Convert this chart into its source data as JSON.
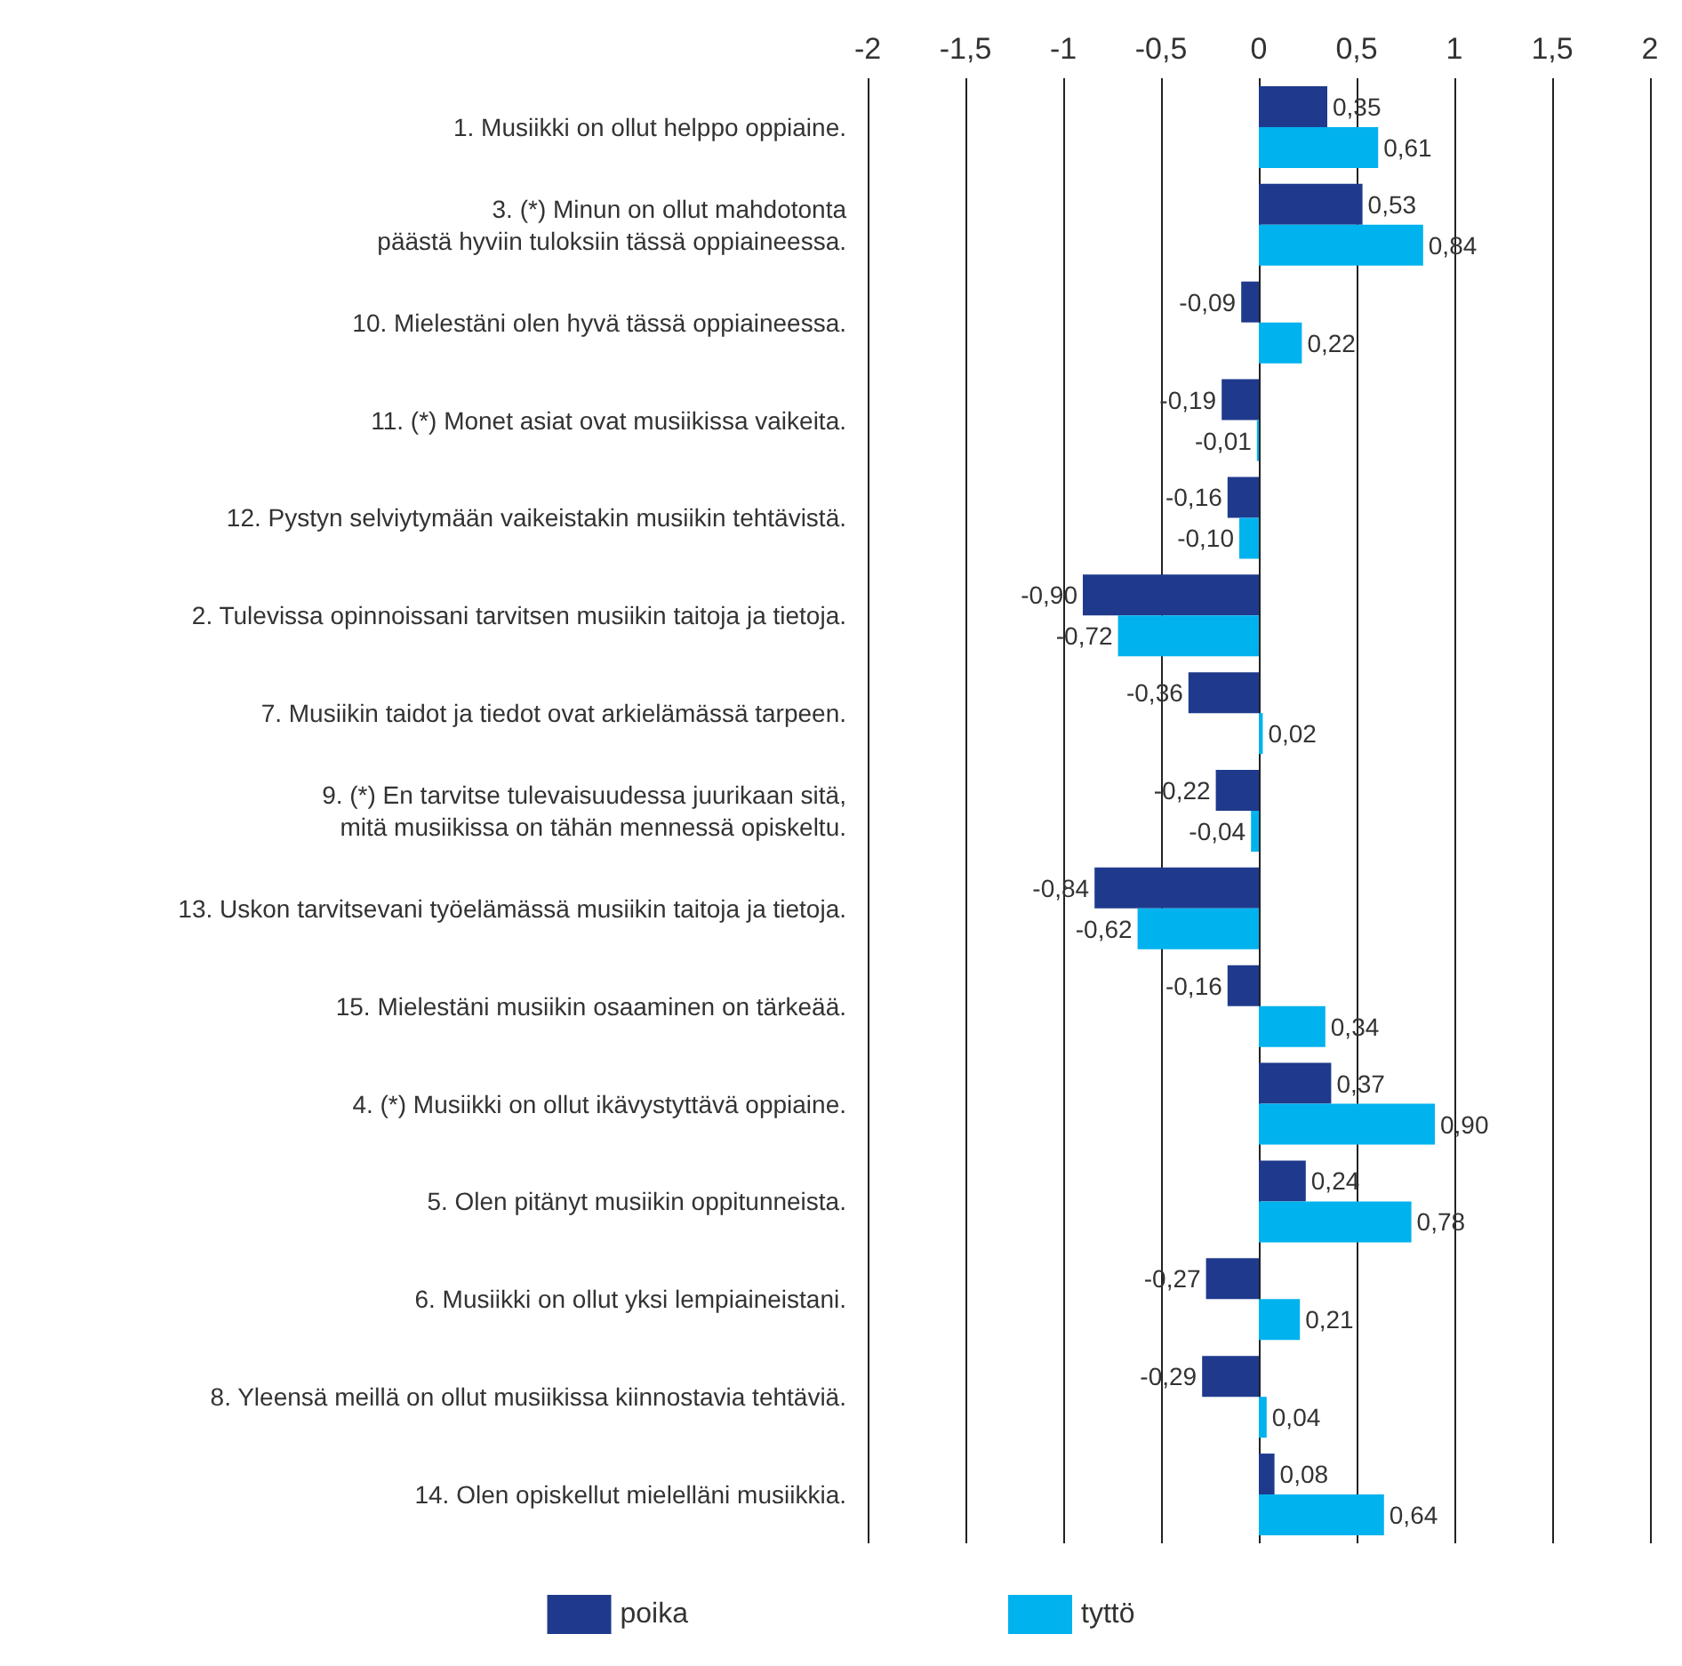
{
  "chart_data": {
    "type": "bar",
    "orientation": "horizontal",
    "categories": [
      "1. Musiikki on ollut helppo oppiaine.",
      "3. (*) Minun on ollut mahdotonta\npäästä hyviin tuloksiin tässä oppiaineessa.",
      "10. Mielestäni olen hyvä tässä oppiaineessa.",
      "11. (*) Monet asiat ovat musiikissa vaikeita.",
      "12. Pystyn selviytymään vaikeistakin musiikin tehtävistä.",
      "2. Tulevissa opinnoissani tarvitsen musiikin taitoja ja tietoja.",
      "7. Musiikin taidot ja tiedot ovat arkielämässä tarpeen.",
      "9. (*) En tarvitse tulevaisuudessa juurikaan sitä,\nmitä musiikissa on tähän mennessä opiskeltu.",
      "13. Uskon tarvitsevani työelämässä musiikin taitoja ja tietoja.",
      "15. Mielestäni musiikin osaaminen on tärkeää.",
      "4. (*) Musiikki on ollut ikävystyttävä oppiaine.",
      "5. Olen pitänyt musiikin oppitunneista.",
      "6. Musiikki on ollut yksi lempiaineistani.",
      "8. Yleensä meillä on ollut musiikissa kiinnostavia tehtäviä.",
      "14. Olen opiskellut mielelläni musiikkia."
    ],
    "series": [
      {
        "name": "poika",
        "color": "#1f3a8c",
        "values": [
          0.35,
          0.53,
          -0.09,
          -0.19,
          -0.16,
          -0.9,
          -0.36,
          -0.22,
          -0.84,
          -0.16,
          0.37,
          0.24,
          -0.27,
          -0.29,
          0.08
        ],
        "value_labels": [
          "0,35",
          "0,53",
          "-0,09",
          "-0,19",
          "-0,16",
          "-0,90",
          "-0,36",
          "-0,22",
          "-0,84",
          "-0,16",
          "0,37",
          "0,24",
          "-0,27",
          "-0,29",
          "0,08"
        ]
      },
      {
        "name": "tyttö",
        "color": "#00b2ee",
        "values": [
          0.61,
          0.84,
          0.22,
          -0.01,
          -0.1,
          -0.72,
          0.02,
          -0.04,
          -0.62,
          0.34,
          0.9,
          0.78,
          0.21,
          0.04,
          0.64
        ],
        "value_labels": [
          "0,61",
          "0,84",
          "0,22",
          "-0,01",
          "-0,10",
          "-0,72",
          "0,02",
          "-0,04",
          "-0,62",
          "0,34",
          "0,90",
          "0,78",
          "0,21",
          "0,04",
          "0,64"
        ]
      }
    ],
    "xlim": [
      -2,
      2
    ],
    "xticks": [
      -2,
      {
        "value": -1.5,
        "label": "-1,5"
      },
      -1,
      {
        "value": -0.5,
        "label": "-0,5"
      },
      0,
      {
        "value": 0.5,
        "label": "0,5"
      },
      1,
      {
        "value": 1.5,
        "label": "1,5"
      },
      2
    ],
    "grid": "x",
    "legend": "bottom"
  }
}
